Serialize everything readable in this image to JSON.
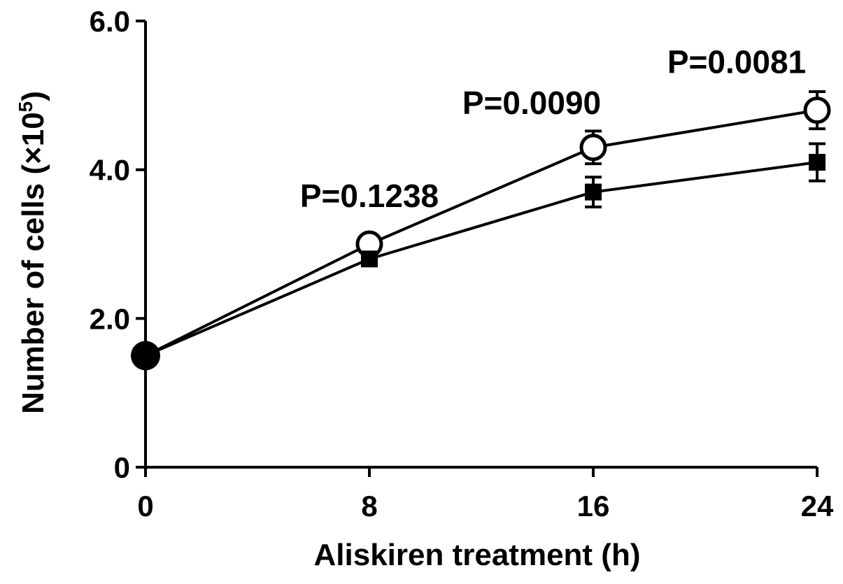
{
  "chart_data": {
    "type": "line",
    "xlabel": "Aliskiren treatment (h)",
    "ylabel_main": "Number of cells (",
    "ylabel_times": "×10",
    "ylabel_exp": "5",
    "ylabel_close": ")",
    "xlim": [
      0,
      24
    ],
    "ylim": [
      0,
      6.0
    ],
    "x_ticks": [
      {
        "value": 0,
        "label": "0"
      },
      {
        "value": 8,
        "label": "8"
      },
      {
        "value": 16,
        "label": "16"
      },
      {
        "value": 24,
        "label": "24"
      }
    ],
    "y_ticks": [
      {
        "value": 0,
        "label": "0"
      },
      {
        "value": 2.0,
        "label": "2.0"
      },
      {
        "value": 4.0,
        "label": "4.0"
      },
      {
        "value": 6.0,
        "label": "6.0"
      }
    ],
    "grid": false,
    "legend": "none",
    "series": [
      {
        "marker": "open-circle",
        "color": "#000000",
        "x": [
          0,
          8,
          16,
          24
        ],
        "y": [
          1.5,
          3.0,
          4.3,
          4.8
        ],
        "error": [
          0.05,
          0.12,
          0.22,
          0.25
        ]
      },
      {
        "marker": "filled-square",
        "color": "#000000",
        "x": [
          0,
          8,
          16,
          24
        ],
        "y": [
          1.5,
          2.8,
          3.7,
          4.1
        ],
        "error": [
          0.05,
          0.07,
          0.2,
          0.25
        ]
      }
    ],
    "start_point": {
      "x": 0,
      "y": 1.5,
      "marker": "filled-circle"
    },
    "annotations": [
      {
        "text": "P=0.1238",
        "x": 8,
        "y": 3.5
      },
      {
        "text": "P=0.0090",
        "x": 16,
        "y": 4.75
      },
      {
        "text": "P=0.0081",
        "x": 24,
        "y": 5.3
      }
    ]
  }
}
